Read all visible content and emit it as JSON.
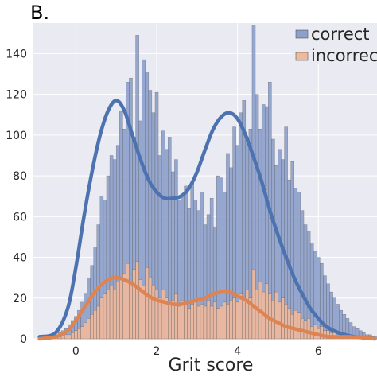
{
  "panel_label": "B.",
  "chart_data": {
    "type": "bar",
    "subtype": "overlaid histogram with KDE curves",
    "xlabel": "Grit score",
    "ylabel": "",
    "xlim": [
      -1.05,
      7.45
    ],
    "ylim": [
      0,
      155
    ],
    "xticks": [
      0,
      2,
      4,
      6
    ],
    "yticks": [
      0,
      20,
      40,
      60,
      80,
      100,
      120,
      140
    ],
    "grid": true,
    "legend_position": "top-right",
    "colors": {
      "background": "#eaeaf2",
      "correct_bar": "#8da0cb",
      "correct_line": "#4c72b0",
      "incorrect_bar": "#efb99c",
      "incorrect_line": "#dd8452",
      "edge": "#555555"
    },
    "bin_start": -0.6,
    "bin_width": 0.08,
    "series": [
      {
        "name": "correct",
        "values": [
          1,
          2,
          3,
          4,
          5,
          7,
          9,
          11,
          14,
          18,
          22,
          30,
          36,
          45,
          56,
          70,
          68,
          80,
          90,
          88,
          95,
          112,
          103,
          126,
          128,
          99,
          149,
          107,
          137,
          131,
          122,
          111,
          121,
          90,
          102,
          93,
          99,
          82,
          88,
          68,
          71,
          75,
          64,
          77,
          68,
          63,
          72,
          56,
          61,
          69,
          55,
          80,
          79,
          72,
          91,
          84,
          104,
          95,
          111,
          117,
          99,
          103,
          154,
          120,
          103,
          115,
          114,
          126,
          98,
          85,
          93,
          88,
          104,
          78,
          87,
          74,
          72,
          63,
          56,
          53,
          47,
          43,
          40,
          37,
          31,
          27,
          23,
          20,
          17,
          14,
          12,
          10,
          8,
          6,
          5,
          4,
          3,
          2,
          2,
          1,
          1,
          1
        ],
        "kde": [
          [
            -0.9,
            1
          ],
          [
            -0.5,
            3
          ],
          [
            -0.2,
            15
          ],
          [
            0.0,
            35
          ],
          [
            0.2,
            60
          ],
          [
            0.4,
            82
          ],
          [
            0.6,
            100
          ],
          [
            0.8,
            112
          ],
          [
            1.0,
            117
          ],
          [
            1.2,
            112
          ],
          [
            1.4,
            100
          ],
          [
            1.6,
            88
          ],
          [
            1.8,
            78
          ],
          [
            2.0,
            72
          ],
          [
            2.2,
            69
          ],
          [
            2.4,
            69
          ],
          [
            2.6,
            70
          ],
          [
            2.8,
            74
          ],
          [
            3.0,
            82
          ],
          [
            3.2,
            93
          ],
          [
            3.4,
            103
          ],
          [
            3.6,
            109
          ],
          [
            3.8,
            111
          ],
          [
            4.0,
            108
          ],
          [
            4.2,
            100
          ],
          [
            4.4,
            89
          ],
          [
            4.6,
            77
          ],
          [
            4.8,
            63
          ],
          [
            5.0,
            51
          ],
          [
            5.2,
            40
          ],
          [
            5.4,
            30
          ],
          [
            5.6,
            22
          ],
          [
            5.8,
            15
          ],
          [
            6.0,
            10
          ],
          [
            6.2,
            6
          ],
          [
            6.5,
            3
          ],
          [
            6.9,
            1
          ],
          [
            7.4,
            0
          ]
        ]
      },
      {
        "name": "incorrect",
        "values": [
          1,
          1,
          1,
          2,
          2,
          2,
          3,
          4,
          5,
          6,
          8,
          10,
          12,
          14,
          16,
          20,
          22,
          24,
          26,
          24,
          28,
          30,
          32,
          37,
          28,
          34,
          38,
          29,
          26,
          35,
          30,
          26,
          24,
          20,
          24,
          20,
          18,
          19,
          22,
          16,
          19,
          18,
          15,
          17,
          18,
          16,
          17,
          16,
          19,
          16,
          18,
          15,
          16,
          18,
          17,
          19,
          20,
          18,
          22,
          21,
          24,
          20,
          34,
          24,
          28,
          23,
          27,
          22,
          19,
          23,
          18,
          20,
          17,
          15,
          12,
          14,
          13,
          10,
          9,
          10,
          6,
          7,
          5,
          6,
          4,
          4,
          3,
          3,
          2,
          2,
          2,
          2,
          1,
          1,
          1,
          1,
          1,
          1,
          1,
          1,
          0,
          0
        ],
        "kde": [
          [
            -0.9,
            0
          ],
          [
            -0.5,
            1
          ],
          [
            -0.2,
            4
          ],
          [
            0.0,
            9
          ],
          [
            0.2,
            15
          ],
          [
            0.4,
            21
          ],
          [
            0.6,
            26
          ],
          [
            0.8,
            29
          ],
          [
            1.0,
            30
          ],
          [
            1.2,
            29
          ],
          [
            1.4,
            27
          ],
          [
            1.6,
            24
          ],
          [
            1.8,
            21
          ],
          [
            2.0,
            19
          ],
          [
            2.2,
            18
          ],
          [
            2.4,
            17
          ],
          [
            2.6,
            17
          ],
          [
            2.8,
            18
          ],
          [
            3.0,
            19
          ],
          [
            3.2,
            20
          ],
          [
            3.4,
            22
          ],
          [
            3.6,
            23
          ],
          [
            3.8,
            23
          ],
          [
            4.0,
            21
          ],
          [
            4.2,
            19
          ],
          [
            4.4,
            16
          ],
          [
            4.6,
            13
          ],
          [
            4.8,
            10
          ],
          [
            5.0,
            8
          ],
          [
            5.2,
            6
          ],
          [
            5.4,
            5
          ],
          [
            5.6,
            4
          ],
          [
            5.8,
            3
          ],
          [
            6.0,
            2
          ],
          [
            6.3,
            1
          ],
          [
            6.8,
            1
          ],
          [
            7.4,
            0
          ]
        ]
      }
    ]
  }
}
